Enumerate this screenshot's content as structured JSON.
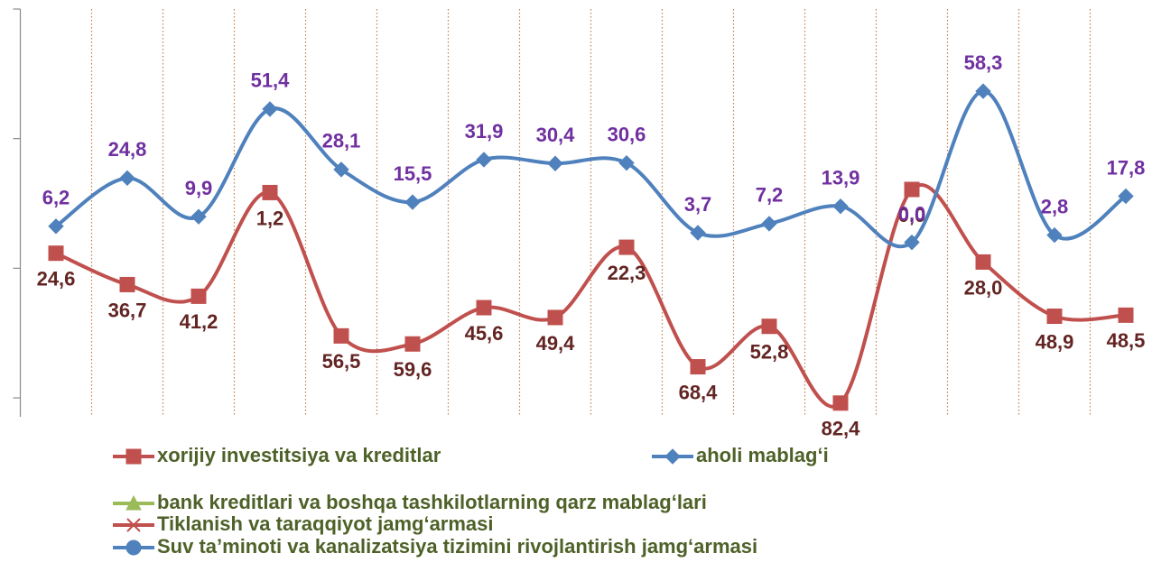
{
  "chart_data": {
    "type": "line",
    "categories": [
      null,
      null,
      null,
      null,
      null,
      null,
      null,
      null,
      null,
      null,
      null,
      null,
      null,
      null,
      null,
      null
    ],
    "ylim": [
      -67.3,
      90
    ],
    "yticks": [
      -60,
      -10,
      40,
      90
    ],
    "y2lim": [
      87.7,
      -69.6
    ],
    "grid": "vertical-dotted",
    "series": [
      {
        "name": "xorijiy investitsiya va kreditlar",
        "color": "#c0504d",
        "marker": "square",
        "axis": "y2",
        "label_color": "#632523",
        "values": [
          24.6,
          36.7,
          41.2,
          1.2,
          56.5,
          59.6,
          45.6,
          49.4,
          22.3,
          68.4,
          52.8,
          82.4,
          0.0,
          28.0,
          48.9,
          48.5
        ],
        "value_labels": [
          "24,6",
          "36,7",
          "41,2",
          "1,2",
          "56,5",
          "59,6",
          "45,6",
          "49,4",
          "22,3",
          "68,4",
          "52,8",
          "82,4",
          "0,0",
          "28,0",
          "48,9",
          "48,5"
        ]
      },
      {
        "name": "aholi mablag‘i",
        "color": "#4f81bd",
        "marker": "diamond",
        "label_color": "#7030a0",
        "values": [
          6.2,
          24.8,
          9.9,
          51.4,
          28.1,
          15.5,
          31.9,
          30.4,
          30.6,
          3.7,
          7.2,
          13.9,
          0.0,
          58.3,
          2.8,
          17.8
        ],
        "value_labels": [
          "6,2",
          "24,8",
          "9,9",
          "51,4",
          "28,1",
          "15,5",
          "31,9",
          "30,4",
          "30,6",
          "3,7",
          "7,2",
          "13,9",
          "0,0",
          "58,3",
          "2,8",
          "17,8"
        ]
      },
      {
        "name": "bank kreditlari va boshqa tashkilotlarning qarz mablag‘lari",
        "color": "#9bbb59",
        "marker": "triangle",
        "values": [
          null,
          null,
          null,
          null,
          null,
          null,
          null,
          null,
          null,
          null,
          null,
          null,
          null,
          null,
          null,
          null
        ]
      },
      {
        "name": "Tiklanish va taraqqiyot jamg‘armasi",
        "color": "#c0504d",
        "marker": "x",
        "values": [
          null,
          null,
          null,
          null,
          null,
          null,
          null,
          null,
          null,
          null,
          null,
          null,
          null,
          null,
          null,
          null
        ]
      },
      {
        "name": "Suv ta’minoti va kanalizatsiya tizimini rivojlantirish jamg‘armasi",
        "color": "#4f81bd",
        "marker": "circle",
        "values": [
          null,
          null,
          null,
          null,
          null,
          null,
          null,
          null,
          null,
          null,
          null,
          null,
          null,
          null,
          null,
          null
        ]
      }
    ]
  }
}
